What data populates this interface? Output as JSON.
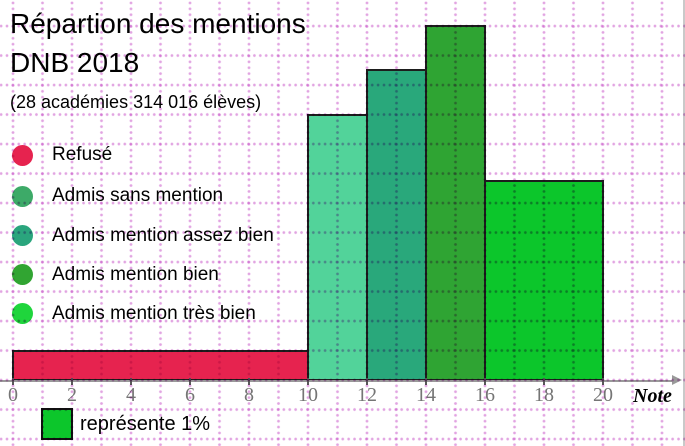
{
  "header": {
    "title_line1": "Répartion des mentions",
    "title_line2": "DNB 2018",
    "subtitle": "(28 académies 314 016 élèves)"
  },
  "legend": {
    "items": [
      {
        "label": "Refusé",
        "color": "#e6234f"
      },
      {
        "label": "Admis sans mention",
        "color": "#3daa68"
      },
      {
        "label": "Admis mention assez bien",
        "color": "#2aa57d"
      },
      {
        "label": "Admis mention bien",
        "color": "#31a532"
      },
      {
        "label": "Admis mention très bien",
        "color": "#1fd53c"
      }
    ]
  },
  "chart_data": {
    "type": "bar",
    "subtype": "histogram (bar area = percentage, one grid square = 1%)",
    "title": "Répartion des mentions DNB 2018",
    "subtitle": "(28 académies 314 016 élèves)",
    "xlabel": "Note",
    "xlim": [
      0,
      20
    ],
    "x_ticks": [
      0,
      2,
      4,
      6,
      8,
      10,
      12,
      14,
      16,
      18,
      20
    ],
    "grid": "dotted magenta squares, 1 note-unit per square",
    "legend_position": "left",
    "bars": [
      {
        "label": "Refusé",
        "x_start": 0,
        "x_end": 10,
        "height_units": 1,
        "area_percent": 10,
        "color": "#e6234f"
      },
      {
        "label": "Admis sans mention",
        "x_start": 10,
        "x_end": 12,
        "height_units": 9,
        "area_percent": 18,
        "color": "#52d39a"
      },
      {
        "label": "Admis mention assez bien",
        "x_start": 12,
        "x_end": 14,
        "height_units": 10.5,
        "area_percent": 21,
        "color": "#29a87b"
      },
      {
        "label": "Admis mention bien",
        "x_start": 14,
        "x_end": 16,
        "height_units": 12,
        "area_percent": 24,
        "color": "#2fa433"
      },
      {
        "label": "Admis mention très bien",
        "x_start": 16,
        "x_end": 20,
        "height_units": 6.75,
        "area_percent": 27,
        "color": "#0cc62b"
      }
    ]
  },
  "scale_legend": {
    "swatch_color": "#0cc62b",
    "label": "représente 1%"
  }
}
